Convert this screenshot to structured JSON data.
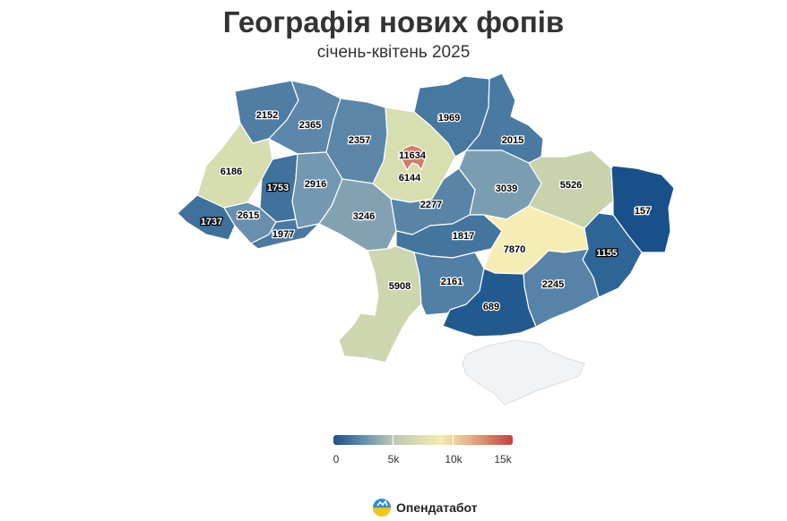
{
  "header": {
    "title": "Географія нових фопів",
    "subtitle": "січень-квітень 2025"
  },
  "regions": [
    {
      "id": "volyn",
      "value": "2152",
      "color": "#4f7da4"
    },
    {
      "id": "rivne",
      "value": "2365",
      "color": "#5c86aa"
    },
    {
      "id": "zhytomyr",
      "value": "2357",
      "color": "#5b86aa"
    },
    {
      "id": "kyiv-oblast",
      "value": "6144",
      "color": "#d7deaf"
    },
    {
      "id": "kyiv-city",
      "value": "11634",
      "color": "#d27c68"
    },
    {
      "id": "chernihiv",
      "value": "1969",
      "color": "#4678a0"
    },
    {
      "id": "sumy",
      "value": "2015",
      "color": "#4a7aa2"
    },
    {
      "id": "lviv",
      "value": "6186",
      "color": "#d6ddaf"
    },
    {
      "id": "ternopil",
      "value": "1753",
      "color": "#3f729c"
    },
    {
      "id": "khmelnytskyi",
      "value": "2916",
      "color": "#7498b1"
    },
    {
      "id": "vinnytsia",
      "value": "3246",
      "color": "#82a2b4"
    },
    {
      "id": "cherkasy",
      "value": "2277",
      "color": "#5884a8"
    },
    {
      "id": "poltava",
      "value": "3039",
      "color": "#7a9db2"
    },
    {
      "id": "kharkiv",
      "value": "5526",
      "color": "#c8d3ae"
    },
    {
      "id": "luhansk",
      "value": "157",
      "color": "#19508a"
    },
    {
      "id": "zakarpattia",
      "value": "1737",
      "color": "#3e719c"
    },
    {
      "id": "ivano-frankivsk",
      "value": "2615",
      "color": "#6890ae"
    },
    {
      "id": "chernivtsi",
      "value": "1977",
      "color": "#4879a1"
    },
    {
      "id": "kirovohrad",
      "value": "1817",
      "color": "#43759e"
    },
    {
      "id": "dnipropetrovsk",
      "value": "7870",
      "color": "#f5edb4"
    },
    {
      "id": "donetsk",
      "value": "1155",
      "color": "#2f6596"
    },
    {
      "id": "odesa",
      "value": "5908",
      "color": "#cdd6ae"
    },
    {
      "id": "mykolaiv",
      "value": "2161",
      "color": "#517fa5"
    },
    {
      "id": "zaporizhzhia",
      "value": "2245",
      "color": "#5683a7"
    },
    {
      "id": "kherson",
      "value": "689",
      "color": "#225a90"
    },
    {
      "id": "crimea",
      "value": "",
      "color": "#f2f3f5"
    }
  ],
  "legend": {
    "min": 0,
    "max": 15000,
    "ticks": [
      "0",
      "5k",
      "10k",
      "15k"
    ],
    "tick_values": [
      0,
      5000,
      10000,
      15000
    ]
  },
  "brand": {
    "name": "Опендатабот",
    "logo_icon": "opendatabot-logo-icon"
  }
}
